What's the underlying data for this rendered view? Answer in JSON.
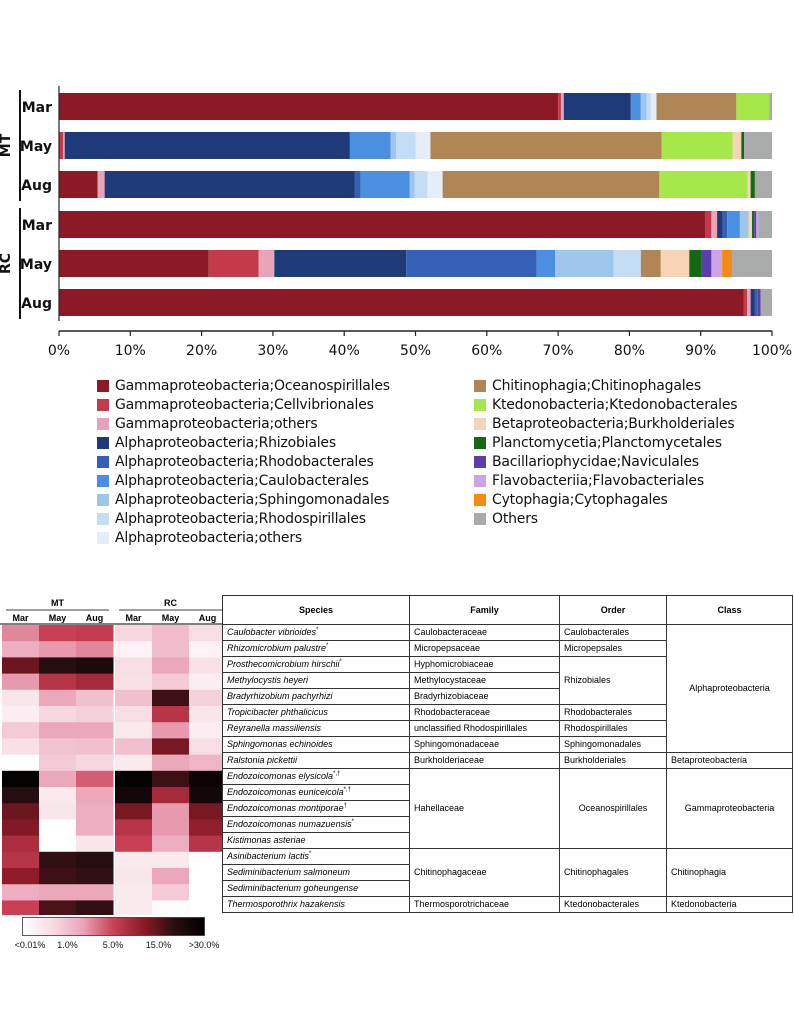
{
  "chart_data": [
    {
      "type": "bar",
      "orientation": "horizontal",
      "stacked": true,
      "groups": [
        {
          "label": "MT",
          "rows": [
            "Mar",
            "May",
            "Aug"
          ]
        },
        {
          "label": "RC",
          "rows": [
            "Mar",
            "May",
            "Aug"
          ]
        }
      ],
      "xlim": [
        0,
        100
      ],
      "xticks": [
        "0%",
        "10%",
        "20%",
        "30%",
        "40%",
        "50%",
        "60%",
        "70%",
        "80%",
        "90%",
        "100%"
      ],
      "legend_position": "bottom",
      "series": [
        {
          "name": "Gammaproteobacteria;Oceanospirillales",
          "color": "#8B1A26",
          "values": [
            70.0,
            0.0,
            5.4,
            90.6,
            21.0,
            96.0
          ]
        },
        {
          "name": "Gammaproteobacteria;Cellvibrionales",
          "color": "#C43A4A",
          "values": [
            0.4,
            0.6,
            0.0,
            0.9,
            7.0,
            0.5
          ]
        },
        {
          "name": "Gammaproteobacteria;others",
          "color": "#E7A3B8",
          "values": [
            0.4,
            0.2,
            1.0,
            0.8,
            2.2,
            0.5
          ]
        },
        {
          "name": "Alphaproteobacteria;Rhizobiales",
          "color": "#1F3A78",
          "values": [
            9.4,
            40.0,
            35.1,
            0.8,
            18.5,
            0.6
          ]
        },
        {
          "name": "Alphaproteobacteria;Rhodobacterales",
          "color": "#3460B8",
          "values": [
            0.0,
            0.0,
            0.8,
            0.6,
            18.3,
            0.4
          ]
        },
        {
          "name": "Alphaproteobacteria;Caulobacterales",
          "color": "#4B8FE0",
          "values": [
            1.4,
            5.7,
            6.9,
            1.8,
            2.6,
            0.0
          ]
        },
        {
          "name": "Alphaproteobacteria;Sphingomonadales",
          "color": "#9CC6EC",
          "values": [
            0.8,
            0.8,
            0.7,
            1.2,
            8.2,
            0.0
          ]
        },
        {
          "name": "Alphaproteobacteria;Rhodospirillales",
          "color": "#C2DDF4",
          "values": [
            0.6,
            2.7,
            1.8,
            0.0,
            3.8,
            0.0
          ]
        },
        {
          "name": "Alphaproteobacteria;others",
          "color": "#E3EEFA",
          "values": [
            0.8,
            2.1,
            2.1,
            0.0,
            0.0,
            0.0
          ]
        },
        {
          "name": "Chitinophagia;Chitinophagales",
          "color": "#B08656",
          "values": [
            11.2,
            32.4,
            30.4,
            0.0,
            2.8,
            0.0
          ]
        },
        {
          "name": "Ktedonobacteria;Ktedonobacterales",
          "color": "#A6E84A",
          "values": [
            4.6,
            10.0,
            12.4,
            0.0,
            0.0,
            0.0
          ]
        },
        {
          "name": "Betaproteobacteria;Burkholderiales",
          "color": "#F7D4B8",
          "values": [
            0.0,
            1.2,
            0.4,
            0.5,
            4.0,
            0.0
          ]
        },
        {
          "name": "Planctomycetia;Planctomycetales",
          "color": "#136813",
          "values": [
            0.0,
            0.4,
            0.6,
            0.3,
            1.7,
            0.0
          ]
        },
        {
          "name": "Bacillariophycidae;Naviculales",
          "color": "#5A3EAA",
          "values": [
            0.0,
            0.0,
            0.0,
            0.3,
            1.4,
            0.4
          ]
        },
        {
          "name": "Flavobacteriia;Flavobacteriales",
          "color": "#CBA5E8",
          "values": [
            0.0,
            0.0,
            0.0,
            0.3,
            1.5,
            0.0
          ]
        },
        {
          "name": "Cytophagia;Cytophagales",
          "color": "#F58B13",
          "values": [
            0.0,
            0.0,
            0.0,
            0.0,
            1.4,
            0.0
          ]
        },
        {
          "name": "Others",
          "color": "#A9AAAA",
          "values": [
            0.4,
            3.9,
            2.4,
            1.9,
            5.6,
            1.6
          ]
        }
      ]
    },
    {
      "type": "heatmap",
      "col_groups": [
        {
          "label": "MT",
          "cols": [
            "Mar",
            "May",
            "Aug"
          ]
        },
        {
          "label": "RC",
          "cols": [
            "Mar",
            "May",
            "Aug"
          ]
        }
      ],
      "colorbar_ticks": [
        "<0.01%",
        "1.0%",
        "5.0%",
        "15.0%",
        ">30.0%"
      ],
      "colorbar_stops": [
        "#FFFFFF",
        "#F7DCE3",
        "#EAA3B8",
        "#C94055",
        "#8B1A26",
        "#2A0E12",
        "#000000"
      ],
      "header": {
        "species": "Species",
        "family": "Family",
        "order": "Order",
        "class": "Class"
      },
      "rows": [
        {
          "species": "Caulobacter vibrioides",
          "mark": "*",
          "family": "Caulobacteraceae",
          "values": [
            0.38,
            0.5,
            0.52,
            0.18,
            0.26,
            0.16
          ]
        },
        {
          "species": "Rhizomicrobium palustre",
          "mark": "*",
          "family": "Micropepsaceae",
          "values": [
            0.3,
            0.35,
            0.38,
            0.06,
            0.26,
            0.06
          ]
        },
        {
          "species": "Prosthecomicrobium hirschii",
          "mark": "*",
          "family": "Hyphomicrobiaceae",
          "values": [
            0.72,
            0.85,
            0.88,
            0.16,
            0.32,
            0.14
          ]
        },
        {
          "species": "Methylocystis heyeri",
          "mark": "",
          "family": "Methylocystaceae",
          "values": [
            0.35,
            0.55,
            0.6,
            0.15,
            0.22,
            0.08
          ]
        },
        {
          "species": "Bradyrhizobium pachyrhizi",
          "mark": "",
          "family": "Bradyrhizobiaceae",
          "values": [
            0.12,
            0.32,
            0.25,
            0.25,
            0.8,
            0.2
          ]
        },
        {
          "species": "Tropicibacter phthalicicus",
          "mark": "",
          "family": "Rhodobacteraceae",
          "values": [
            0.08,
            0.18,
            0.2,
            0.16,
            0.55,
            0.12
          ]
        },
        {
          "species": "Reyranella massiliensis",
          "mark": "",
          "family": "unclassified Rhodospirillales",
          "values": [
            0.22,
            0.32,
            0.32,
            0.1,
            0.35,
            0.08
          ]
        },
        {
          "species": "Sphingomonas echinoides",
          "mark": "",
          "family": "Sphingomonadaceae",
          "values": [
            0.15,
            0.24,
            0.25,
            0.25,
            0.7,
            0.16
          ]
        },
        {
          "species": "Ralstonia pickettii",
          "mark": "",
          "family": "Burkholderiaceae",
          "values": [
            0.0,
            0.22,
            0.18,
            0.1,
            0.32,
            0.28
          ]
        },
        {
          "species": "Endozoicomonas elysicola",
          "mark": "*,†",
          "family": "Hahellaceae",
          "values": [
            0.98,
            0.32,
            0.45,
            0.98,
            0.8,
            0.95
          ]
        },
        {
          "species": "Endozoicomonas euniceicola",
          "mark": "*,†",
          "family": "",
          "values": [
            0.85,
            0.1,
            0.32,
            0.92,
            0.6,
            0.92
          ]
        },
        {
          "species": "Endozoicomonas montiporae",
          "mark": "†",
          "family": "",
          "values": [
            0.72,
            0.12,
            0.3,
            0.7,
            0.35,
            0.7
          ]
        },
        {
          "species": "Endozoicomonas numazuensis",
          "mark": "*",
          "family": "",
          "values": [
            0.68,
            0.0,
            0.3,
            0.55,
            0.35,
            0.65
          ]
        },
        {
          "species": "Kistimonas asteriae",
          "mark": "",
          "family": "",
          "values": [
            0.58,
            0.0,
            0.12,
            0.5,
            0.3,
            0.55
          ]
        },
        {
          "species": "Asinibacterium lactis",
          "mark": "*",
          "family": "Chitinophagaceae",
          "values": [
            0.55,
            0.82,
            0.85,
            0.1,
            0.1,
            0.0
          ]
        },
        {
          "species": "Sediminibacterium salmoneum",
          "mark": "",
          "family": "",
          "values": [
            0.66,
            0.8,
            0.82,
            0.12,
            0.32,
            0.0
          ]
        },
        {
          "species": "Sediminibacterium goheungense",
          "mark": "",
          "family": "",
          "values": [
            0.3,
            0.32,
            0.32,
            0.1,
            0.22,
            0.0
          ]
        },
        {
          "species": "Thermosporothrix hazakensis",
          "mark": "",
          "family": "Thermosporotrichaceae",
          "values": [
            0.5,
            0.78,
            0.82,
            0.1,
            0.02,
            0.0
          ]
        }
      ],
      "order_labels": [
        "Caulobacterales",
        "Micropepsales",
        "Rhizobiales",
        "Rhodobacterales",
        "Rhodospirillales",
        "Sphingomonadales",
        "Burkholderiales",
        "Oceanospirillales",
        "Chitinophagales",
        "Ktedonobacterales"
      ],
      "class_labels": [
        "Alphaproteobacteria",
        "Betaproteobacteria",
        "Gammaproteobacteria",
        "Chitinophagia",
        "Ktedonobacteria"
      ]
    }
  ]
}
